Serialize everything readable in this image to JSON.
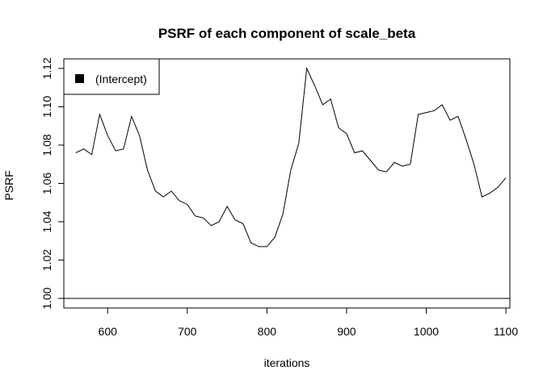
{
  "chart_data": {
    "type": "line",
    "title": "PSRF of each component of scale_beta",
    "xlabel": "iterations",
    "ylabel": "PSRF",
    "xlim": [
      545,
      1105
    ],
    "ylim": [
      0.995,
      1.125
    ],
    "xticks": [
      600,
      700,
      800,
      900,
      1000,
      1100
    ],
    "yticks": [
      1.0,
      1.02,
      1.04,
      1.06,
      1.08,
      1.1,
      1.12
    ],
    "ytick_labels": [
      "1.00",
      "1.02",
      "1.04",
      "1.06",
      "1.08",
      "1.10",
      "1.12"
    ],
    "reference_line": 1.0,
    "legend": {
      "placement": "top-left",
      "entries": [
        "(Intercept)"
      ]
    },
    "series": [
      {
        "name": "(Intercept)",
        "color": "#000000",
        "x": [
          560,
          570,
          580,
          590,
          600,
          610,
          620,
          630,
          640,
          650,
          660,
          670,
          680,
          690,
          700,
          710,
          720,
          730,
          740,
          750,
          760,
          770,
          780,
          790,
          800,
          810,
          820,
          830,
          840,
          850,
          860,
          870,
          880,
          890,
          900,
          910,
          920,
          930,
          940,
          950,
          960,
          970,
          980,
          990,
          1000,
          1010,
          1020,
          1030,
          1040,
          1050,
          1060,
          1070,
          1080,
          1090,
          1100
        ],
        "y": [
          1.076,
          1.078,
          1.075,
          1.096,
          1.085,
          1.077,
          1.078,
          1.095,
          1.085,
          1.067,
          1.056,
          1.053,
          1.056,
          1.051,
          1.049,
          1.043,
          1.042,
          1.038,
          1.04,
          1.048,
          1.041,
          1.039,
          1.029,
          1.027,
          1.027,
          1.032,
          1.044,
          1.067,
          1.081,
          1.12,
          1.111,
          1.101,
          1.104,
          1.089,
          1.086,
          1.076,
          1.077,
          1.072,
          1.067,
          1.066,
          1.071,
          1.069,
          1.07,
          1.096,
          1.097,
          1.098,
          1.101,
          1.093,
          1.095,
          1.083,
          1.07,
          1.053,
          1.055,
          1.058,
          1.063
        ]
      }
    ]
  }
}
